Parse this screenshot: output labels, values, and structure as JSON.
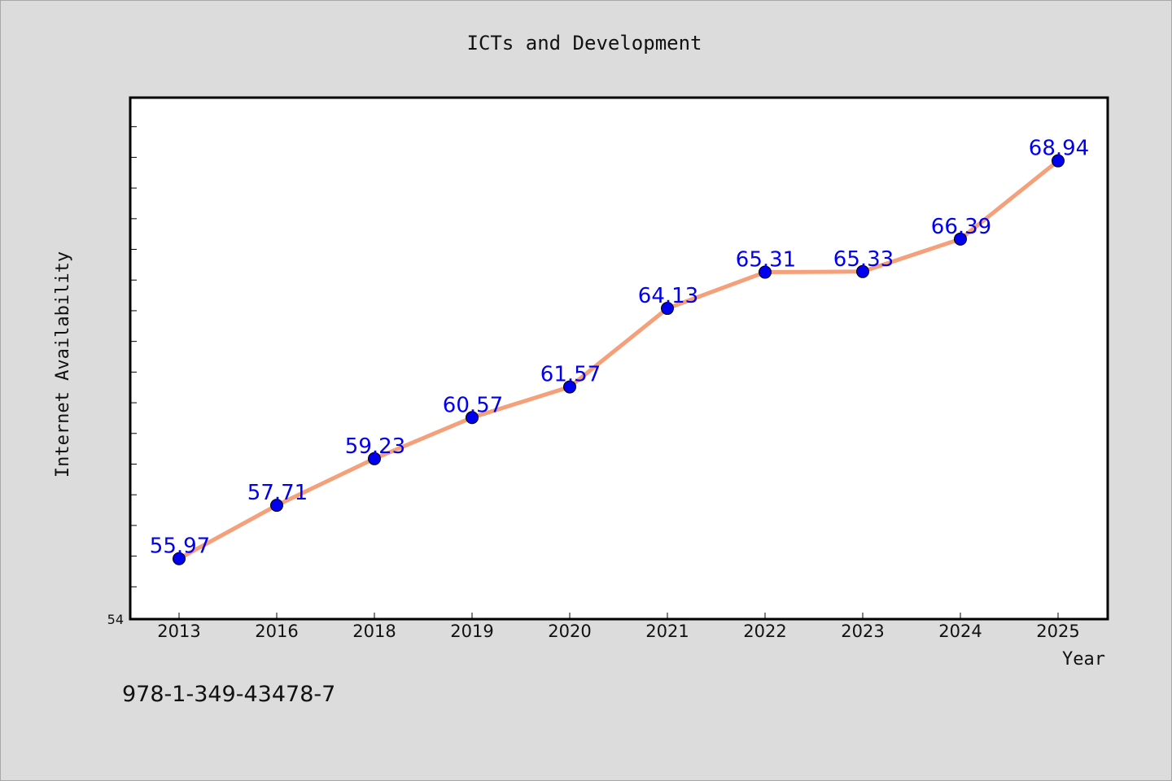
{
  "chart_data": {
    "type": "line",
    "title": "ICTs and Development",
    "xlabel": "Year",
    "ylabel": "Internet Availability",
    "categories": [
      "2013",
      "2016",
      "2018",
      "2019",
      "2020",
      "2021",
      "2022",
      "2023",
      "2024",
      "2025"
    ],
    "series": [
      {
        "values": [
          55.97,
          57.71,
          59.23,
          60.57,
          61.57,
          64.13,
          65.31,
          65.33,
          66.39,
          68.94
        ],
        "labels": [
          "55.97",
          "57.71",
          "59.23",
          "60.57",
          "61.57",
          "64.13",
          "65.31",
          "65.33",
          "66.39",
          "68.94"
        ],
        "line_color": "#f4a07a",
        "marker_color": "#0000ee",
        "label_color": "#0000ee"
      }
    ],
    "ylim": [
      54,
      71
    ],
    "y_tick_labels": [
      "54"
    ],
    "y_minor_step": 1,
    "grid": false,
    "legend": "none"
  },
  "footer": {
    "isbn": "978-1-349-43478-7"
  }
}
